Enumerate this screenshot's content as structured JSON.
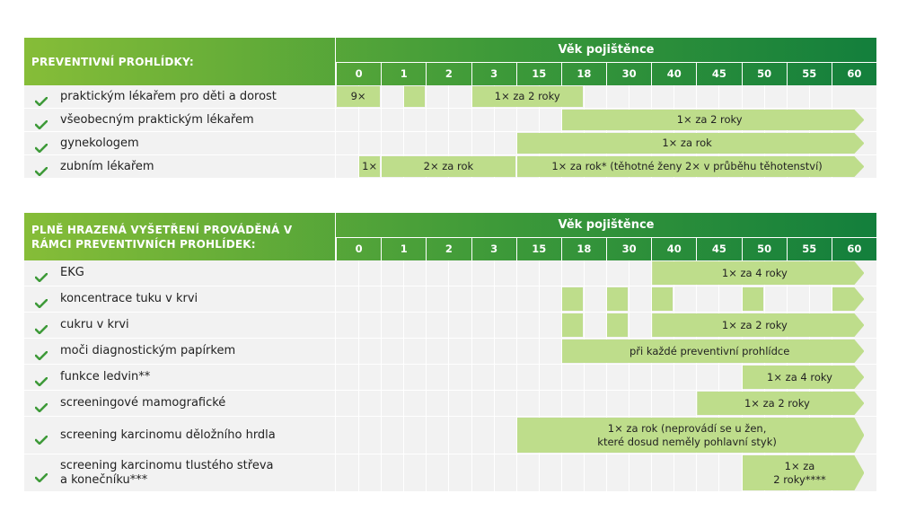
{
  "colors": {
    "header_start": "#86bd38",
    "header_end": "#137f3c",
    "bar": "#bedd8b",
    "check": "#3e9a39",
    "row_bg": "#f2f2f2"
  },
  "age_header": "Věk pojištěnce",
  "ages": [
    "0",
    "1",
    "2",
    "3",
    "15",
    "18",
    "30",
    "40",
    "45",
    "50",
    "55",
    "60"
  ],
  "table1": {
    "title": "PREVENTIVNÍ PROHLÍDKY:",
    "rows": [
      {
        "label": "praktickým lékařem pro děti a dorost",
        "bars": [
          {
            "text": "9×"
          },
          {
            "text": ""
          },
          {
            "text": "1× za 2 roky"
          }
        ]
      },
      {
        "label": "všeobecným praktickým lékařem",
        "bars": [
          {
            "text": "1× za 2 roky"
          }
        ]
      },
      {
        "label": "gynekologem",
        "bars": [
          {
            "text": "1× za rok"
          }
        ]
      },
      {
        "label": "zubním lékařem",
        "bars": [
          {
            "text": "1×"
          },
          {
            "text": "2× za rok"
          },
          {
            "text": "1× za rok* (těhotné ženy 2× v průběhu těhotenství)"
          }
        ]
      }
    ]
  },
  "table2": {
    "title": "PLNĚ HRAZENÁ VYŠETŘENÍ PROVÁDĚNÁ V RÁMCI PREVENTIVNÍCH PROHLÍDEK:",
    "rows": [
      {
        "label": "EKG",
        "bars": [
          {
            "text": "1× za 4 roky"
          }
        ]
      },
      {
        "label": "koncentrace tuku v krvi",
        "bars": [
          {
            "text": ""
          },
          {
            "text": ""
          },
          {
            "text": ""
          },
          {
            "text": ""
          },
          {
            "text": ""
          }
        ]
      },
      {
        "label": "cukru v krvi",
        "bars": [
          {
            "text": ""
          },
          {
            "text": ""
          },
          {
            "text": "1× za 2 roky"
          }
        ]
      },
      {
        "label": "moči diagnostickým papírkem",
        "bars": [
          {
            "text": "při každé preventivní prohlídce"
          }
        ]
      },
      {
        "label": "funkce ledvin**",
        "bars": [
          {
            "text": "1× za 4 roky"
          }
        ]
      },
      {
        "label": "screeningové mamografické",
        "bars": [
          {
            "text": "1× za 2 roky"
          }
        ]
      },
      {
        "label": "screening karcinomu děložního hrdla",
        "bars": [
          {
            "text": "1× za rok (neprovádí se u žen,\nkteré dosud neměly pohlavní styk)"
          }
        ]
      },
      {
        "label": "screening karcinomu tlustého střeva\na konečníku***",
        "bars": [
          {
            "text": "1× za\n2 roky****"
          }
        ]
      }
    ]
  }
}
